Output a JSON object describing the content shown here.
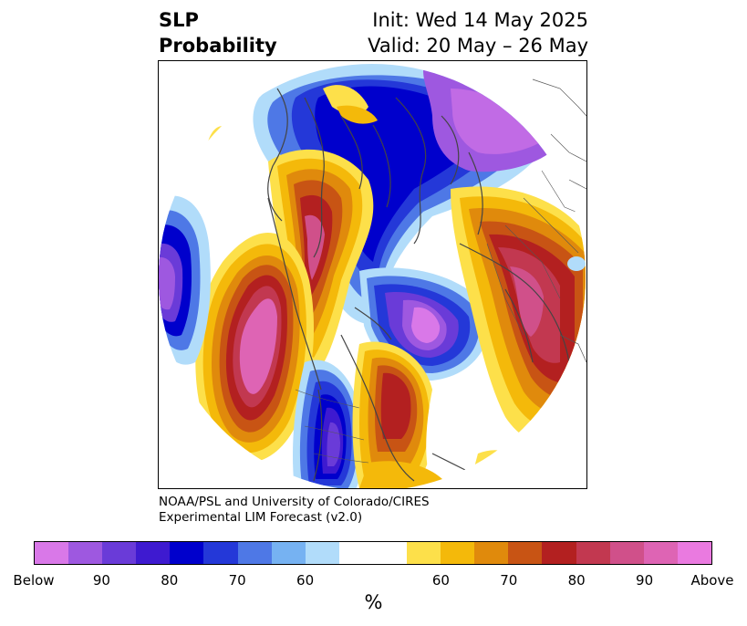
{
  "title": {
    "left_line1": "SLP",
    "left_line2": "Probability",
    "right_line1": "Init: Wed 14 May 2025",
    "right_line2": "Valid: 20 May – 26 May"
  },
  "credit": {
    "line1": "NOAA/PSL and University of Colorado/CIRES",
    "line2": "Experimental LIM Forecast (v2.0)"
  },
  "colorbar": {
    "colors": [
      "#d978e8",
      "#9e58e0",
      "#6a3bd8",
      "#3e1ad0",
      "#0000cc",
      "#2438d8",
      "#4e78e6",
      "#76b2f2",
      "#b1dcfa",
      "#ffffff",
      "#ffffff",
      "#fde04a",
      "#f4b90a",
      "#e08a0c",
      "#c85414",
      "#b32020",
      "#c23850",
      "#d0508a",
      "#de64b4",
      "#ea7ae0"
    ],
    "ticks": [
      "Below",
      "90",
      "80",
      "70",
      "60",
      "60",
      "70",
      "80",
      "90",
      "Above"
    ],
    "unit": "%"
  }
}
